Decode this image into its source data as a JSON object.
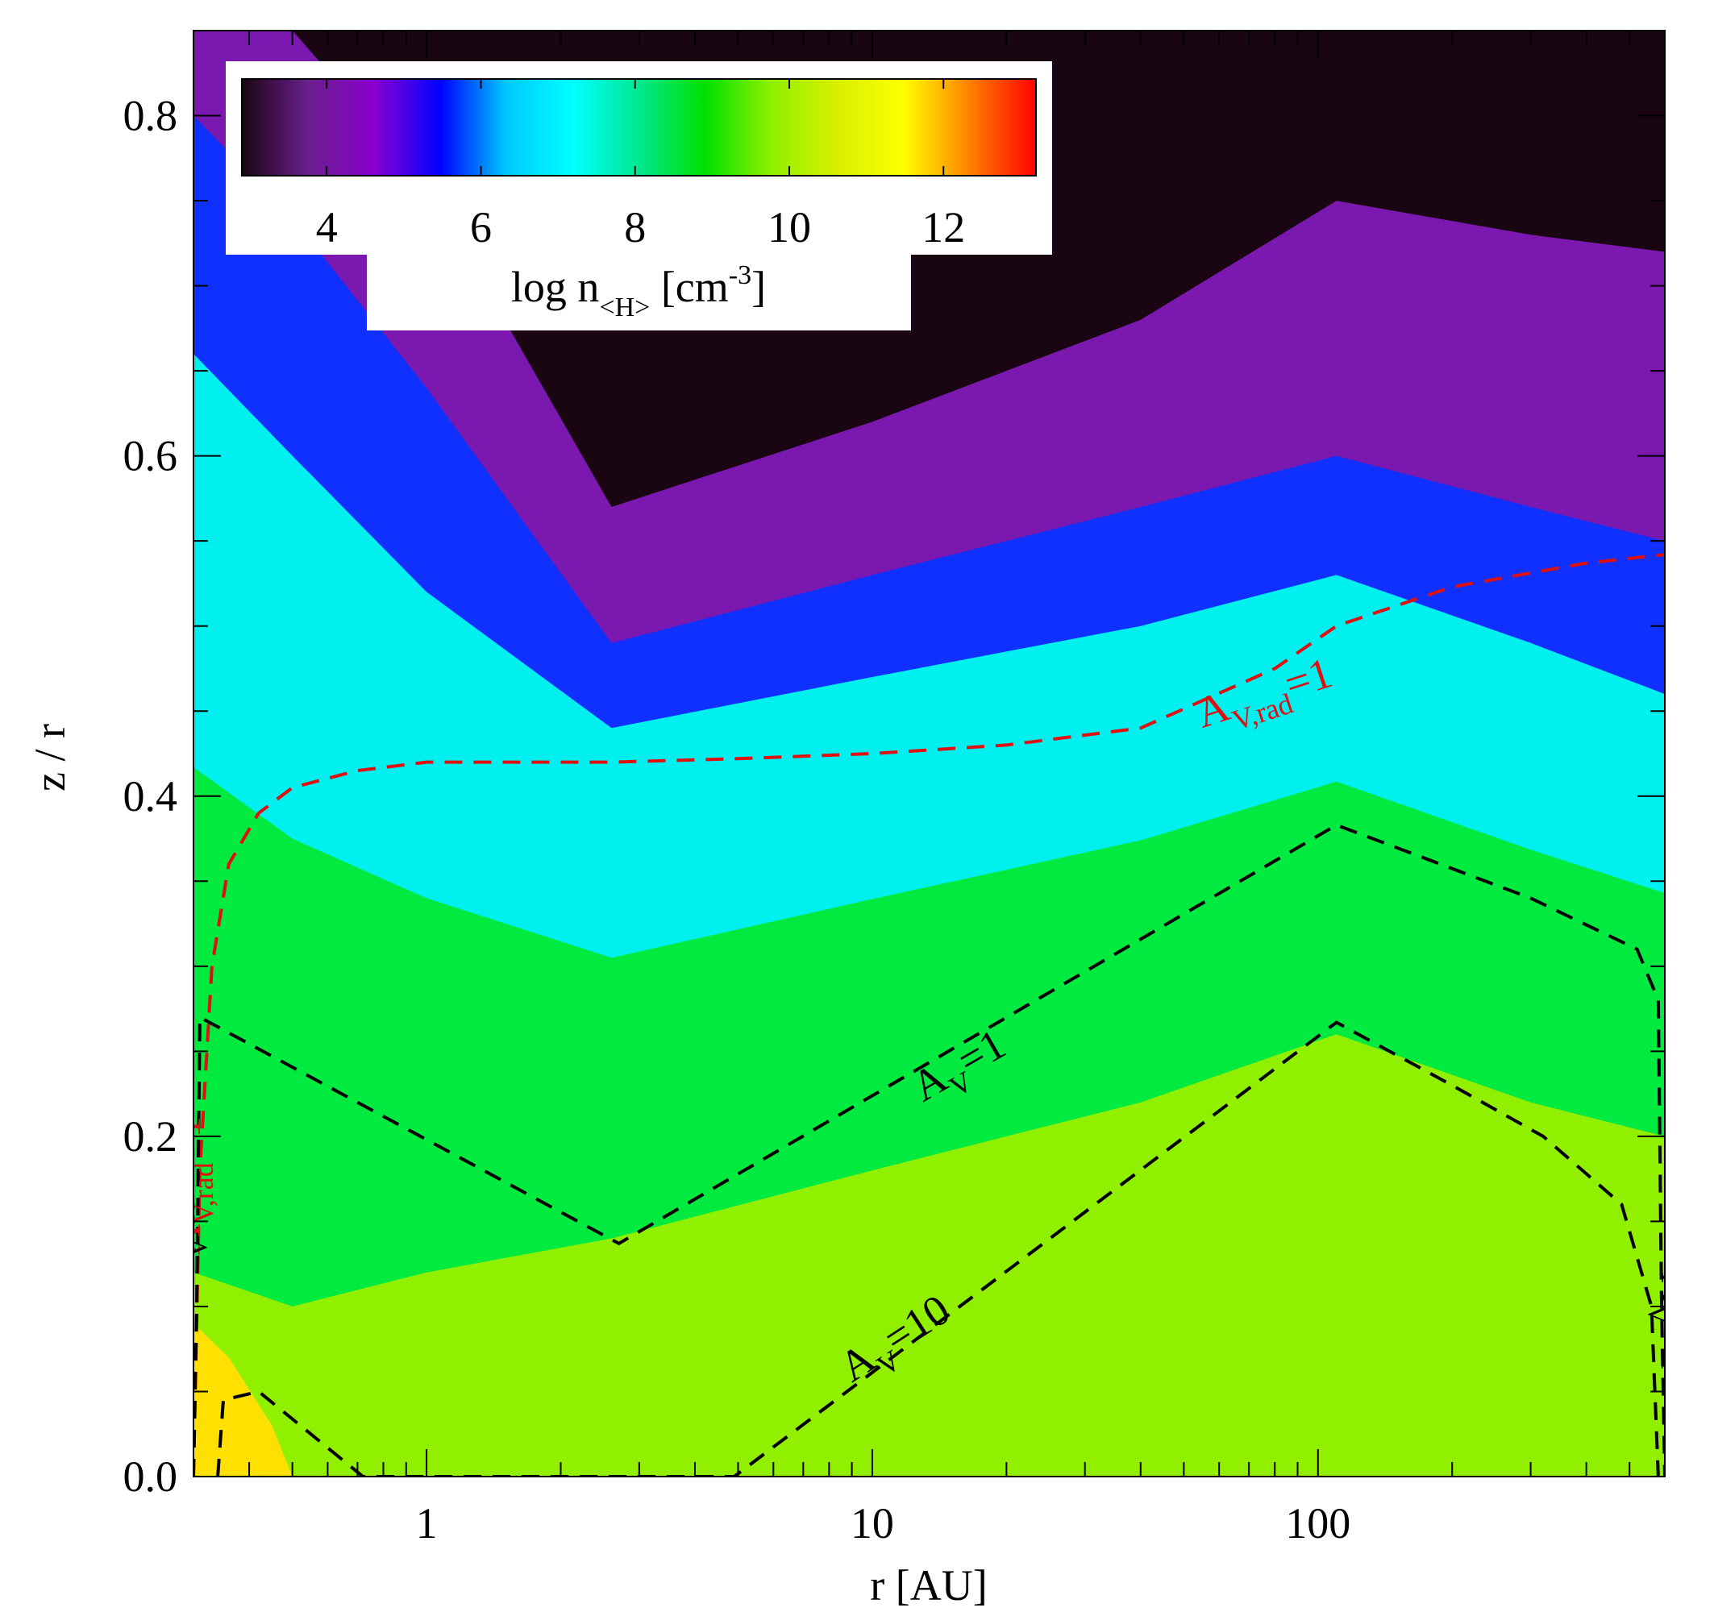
{
  "chart_data": {
    "type": "heatmap",
    "x_scale": "log",
    "xlim": [
      0.3,
      600
    ],
    "ylim": [
      0.0,
      0.85
    ],
    "xlabel": "r [AU]",
    "ylabel": "z / r",
    "x_ticks": [
      {
        "value": 1,
        "label": "1"
      },
      {
        "value": 10,
        "label": "10"
      },
      {
        "value": 100,
        "label": "100"
      }
    ],
    "y_ticks": [
      {
        "value": 0.0,
        "label": "0.0"
      },
      {
        "value": 0.2,
        "label": "0.2"
      },
      {
        "value": 0.4,
        "label": "0.4"
      },
      {
        "value": 0.6,
        "label": "0.6"
      },
      {
        "value": 0.8,
        "label": "0.8"
      }
    ],
    "colorbar": {
      "range": [
        2.9,
        13.2
      ],
      "ticks": [
        4,
        6,
        8,
        10,
        12
      ],
      "tick_labels": [
        "4",
        "6",
        "8",
        "10",
        "12"
      ],
      "label_main": "log n",
      "label_sub": "<H>",
      "label_unit_pre": " [cm",
      "label_unit_sup": "-3",
      "label_unit_post": "]",
      "colors": [
        "#1a0512",
        "#6a1f8c",
        "#8a00d0",
        "#0000ff",
        "#00c8ff",
        "#00ffff",
        "#00e890",
        "#00e000",
        "#90f000",
        "#d8f000",
        "#ffff00",
        "#ff8000",
        "#ff0000"
      ]
    },
    "density_bands": {
      "description_free": true,
      "x": [
        0.3,
        0.5,
        1.0,
        2.6,
        10,
        40,
        110,
        300,
        600
      ],
      "upper_boundary_log9": [
        0.12,
        0.1,
        0.12,
        0.14,
        0.18,
        0.22,
        0.26,
        0.22,
        0.2
      ],
      "cyan_top": [
        0.66,
        0.6,
        0.52,
        0.44,
        0.47,
        0.5,
        0.53,
        0.49,
        0.46
      ],
      "blue_top": [
        0.8,
        0.74,
        0.64,
        0.49,
        0.53,
        0.57,
        0.6,
        0.57,
        0.55
      ],
      "purple_top": [
        0.85,
        0.85,
        0.76,
        0.57,
        0.62,
        0.68,
        0.75,
        0.73,
        0.72
      ]
    },
    "contours": [
      {
        "label": "A",
        "label_sub": "V,rad",
        "label_post": "=1",
        "color": "#e01010",
        "x": [
          0.3,
          0.31,
          0.33,
          0.36,
          0.42,
          0.5,
          0.7,
          1.0,
          2.0,
          2.6,
          5,
          10,
          20,
          40,
          80,
          110,
          200,
          400,
          600
        ],
        "y": [
          0.0,
          0.18,
          0.3,
          0.36,
          0.39,
          0.405,
          0.415,
          0.42,
          0.42,
          0.42,
          0.422,
          0.425,
          0.43,
          0.44,
          0.475,
          0.5,
          0.523,
          0.537,
          0.542
        ]
      },
      {
        "label": "A",
        "label_sub": "V",
        "label_post": "=1",
        "color": "#000000",
        "x": [
          0.3,
          0.305,
          0.31,
          2.7,
          110,
          300,
          520,
          580,
          590,
          600
        ],
        "y": [
          0.0,
          0.1,
          0.27,
          0.137,
          0.383,
          0.34,
          0.31,
          0.28,
          0.1,
          0.0
        ]
      },
      {
        "label": "A",
        "label_sub": "V",
        "label_post": "=10",
        "color": "#000000",
        "x": [
          0.34,
          0.35,
          0.42,
          0.72,
          4.9,
          110,
          200,
          320,
          480,
          560,
          580
        ],
        "y": [
          0.0,
          0.045,
          0.05,
          0.0,
          0.0,
          0.267,
          0.23,
          0.2,
          0.16,
          0.1,
          0.0
        ]
      }
    ],
    "contour_labels": [
      {
        "text": "A",
        "sub": "V,rad",
        "post": "=1",
        "color": "#e01010",
        "at": [
          55,
          0.44
        ],
        "angle": -18
      },
      {
        "text": "A",
        "sub": "V",
        "post": "=1",
        "color": "#000000",
        "at": [
          13,
          0.22
        ],
        "angle": -30
      },
      {
        "text": "A",
        "sub": "V",
        "post": "=10",
        "color": "#000000",
        "at": [
          9,
          0.055
        ],
        "angle": -33
      },
      {
        "text": "A",
        "sub": "V,rad",
        "post": "=1",
        "color": "#e01010",
        "at": [
          0.31,
          0.13
        ],
        "angle": -90
      },
      {
        "text": "A",
        "sub": "V",
        "post": "=1",
        "color": "#000000",
        "at": [
          0.3,
          0.11
        ],
        "angle": -90
      },
      {
        "text": "A",
        "sub": "V",
        "post": "=1",
        "color": "#000000",
        "at": [
          590,
          0.12
        ],
        "angle": 90
      }
    ]
  }
}
